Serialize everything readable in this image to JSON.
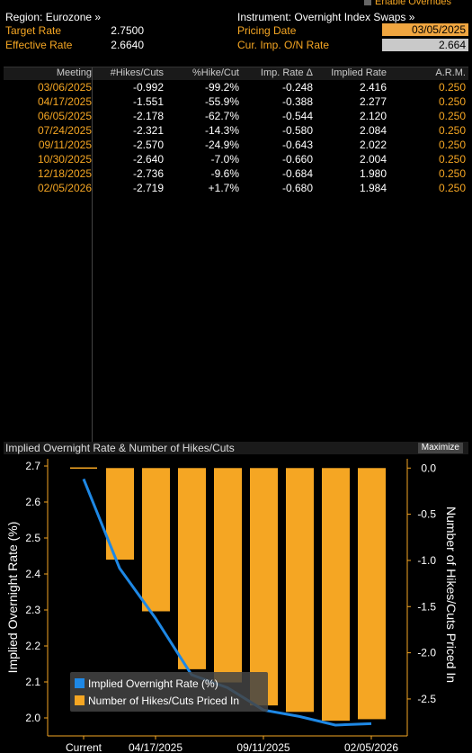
{
  "header": {
    "enable_overrides": "Enable Overrides",
    "region": "Region: Eurozone »",
    "instrument": "Instrument: Overnight Index Swaps »",
    "target_rate_label": "Target Rate",
    "target_rate_value": "2.7500",
    "effective_rate_label": "Effective Rate",
    "effective_rate_value": "2.6640",
    "pricing_date_label": "Pricing Date",
    "pricing_date_value": "03/05/2025",
    "cur_imp_label": "Cur. Imp. O/N Rate",
    "cur_imp_value": "2.664"
  },
  "table": {
    "columns": [
      "Meeting",
      "#Hikes/Cuts",
      "%Hike/Cut",
      "Imp. Rate Δ",
      "Implied Rate",
      "A.R.M."
    ],
    "rows": [
      [
        "03/06/2025",
        "-0.992",
        "-99.2%",
        "-0.248",
        "2.416",
        "0.250"
      ],
      [
        "04/17/2025",
        "-1.551",
        "-55.9%",
        "-0.388",
        "2.277",
        "0.250"
      ],
      [
        "06/05/2025",
        "-2.178",
        "-62.7%",
        "-0.544",
        "2.120",
        "0.250"
      ],
      [
        "07/24/2025",
        "-2.321",
        "-14.3%",
        "-0.580",
        "2.084",
        "0.250"
      ],
      [
        "09/11/2025",
        "-2.570",
        "-24.9%",
        "-0.643",
        "2.022",
        "0.250"
      ],
      [
        "10/30/2025",
        "-2.640",
        "-7.0%",
        "-0.660",
        "2.004",
        "0.250"
      ],
      [
        "12/18/2025",
        "-2.736",
        "-9.6%",
        "-0.684",
        "1.980",
        "0.250"
      ],
      [
        "02/05/2026",
        "-2.719",
        "+1.7%",
        "-0.680",
        "1.984",
        "0.250"
      ]
    ]
  },
  "chart_panel": {
    "title": "Implied Overnight Rate & Number of Hikes/Cuts",
    "maximize_label": "Maximize"
  },
  "chart_data": {
    "type": "bar",
    "categories": [
      "Current",
      "03/06/2025",
      "04/17/2025",
      "06/05/2025",
      "07/24/2025",
      "09/11/2025",
      "10/30/2025",
      "12/18/2025",
      "02/05/2026"
    ],
    "x_tick_labels": [
      "Current",
      "04/17/2025",
      "09/11/2025",
      "02/05/2026"
    ],
    "series": [
      {
        "name": "Implied Overnight Rate (%)",
        "type": "line",
        "axis": "left",
        "color": "#1e88e5",
        "values": [
          2.664,
          2.416,
          2.277,
          2.12,
          2.084,
          2.022,
          2.004,
          1.98,
          1.984
        ]
      },
      {
        "name": "Number of Hikes/Cuts Priced In",
        "type": "bar",
        "axis": "right",
        "color": "#f5a623",
        "values": [
          0,
          -0.992,
          -1.551,
          -2.178,
          -2.321,
          -2.57,
          -2.64,
          -2.736,
          -2.719
        ]
      }
    ],
    "ylabel_left": "Implied Overnight Rate (%)",
    "ylabel_right": "Number of Hikes/Cuts Priced In",
    "ylim_left": [
      1.95,
      2.72
    ],
    "ylim_right": [
      -2.9,
      0.1
    ],
    "yticks_left": [
      "2.7",
      "2.6",
      "2.5",
      "2.4",
      "2.3",
      "2.2",
      "2.1",
      "2.0"
    ],
    "yticks_right": [
      "0.0",
      "-0.5",
      "-1.0",
      "-1.5",
      "-2.0",
      "-2.5"
    ],
    "legend_position": "bottom-left"
  }
}
